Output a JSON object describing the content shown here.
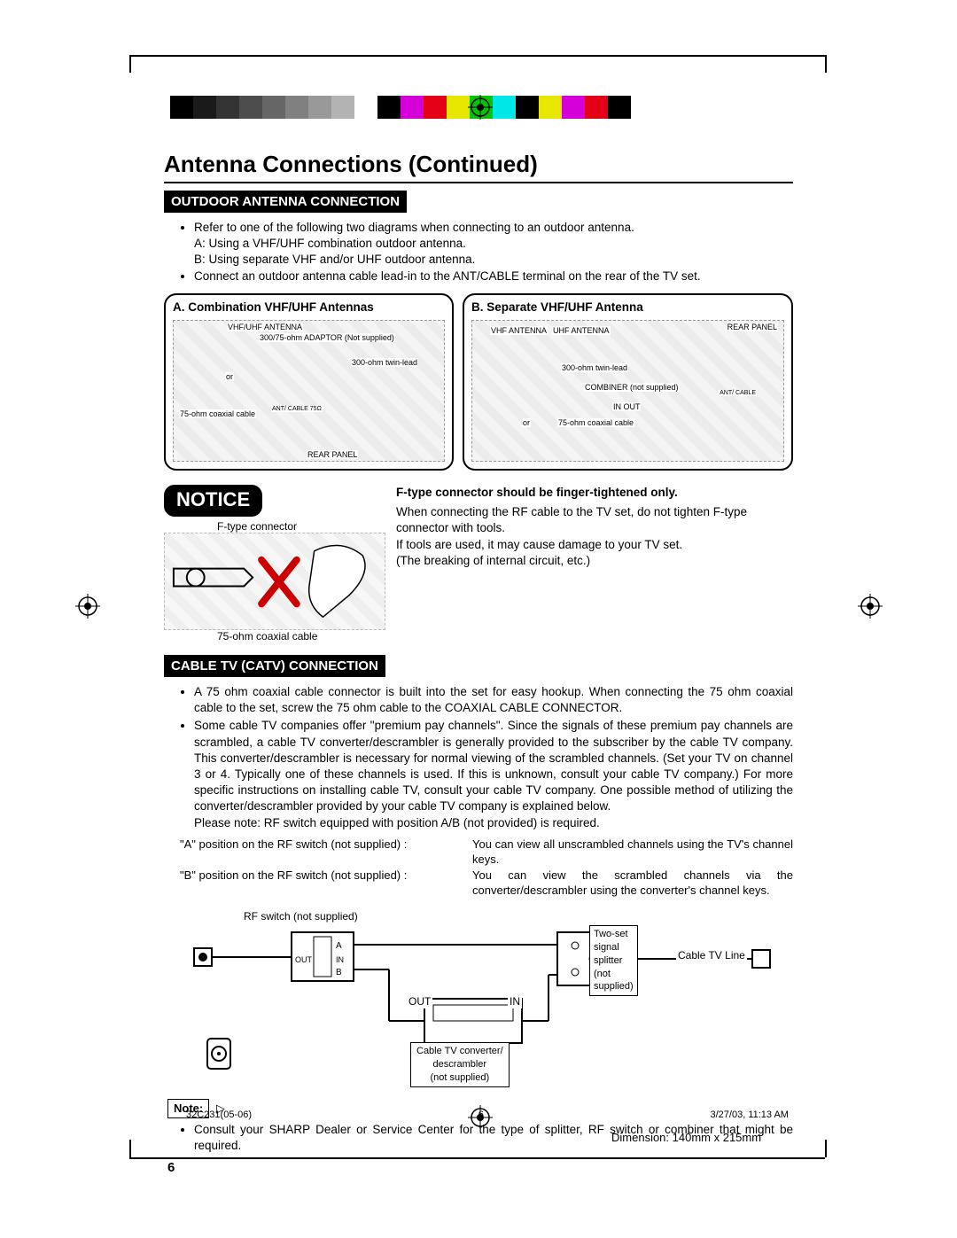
{
  "colorbar": [
    "#000000",
    "#1a1a1a",
    "#333333",
    "#4d4d4d",
    "#666666",
    "#808080",
    "#999999",
    "#b3b3b3",
    "#ffffff",
    "#000000",
    "#d500d8",
    "#e30016",
    "#e6e600",
    "#00c400",
    "#00e7e7",
    "#000000",
    "#e6e600",
    "#d500d8",
    "#e30016",
    "#000000"
  ],
  "title": "Antenna Connections (Continued)",
  "outdoor": {
    "header": "OUTDOOR ANTENNA CONNECTION",
    "bullets": [
      "Refer to one of the following two diagrams when connecting to an outdoor antenna.",
      "A: Using a VHF/UHF combination outdoor antenna.",
      "B: Using separate VHF and/or UHF outdoor antenna.",
      "Connect an outdoor antenna cable lead-in to the ANT/CABLE terminal on the rear of the TV set."
    ],
    "diagram_a": {
      "title": "A. Combination VHF/UHF Antennas",
      "labels": {
        "ant": "VHF/UHF ANTENNA",
        "adaptor": "300/75-ohm ADAPTOR (Not supplied)",
        "twin": "300-ohm twin-lead",
        "or": "or",
        "coax": "75-ohm coaxial cable",
        "term": "ANT/ CABLE 75Ω",
        "rear": "REAR PANEL"
      }
    },
    "diagram_b": {
      "title": "B. Separate VHF/UHF Antenna",
      "labels": {
        "vhf": "VHF ANTENNA",
        "uhf": "UHF ANTENNA",
        "twin": "300-ohm twin-lead",
        "combiner": "COMBINER (not supplied)",
        "inout": "IN OUT",
        "or": "or",
        "coax": "75-ohm coaxial cable",
        "term": "ANT/ CABLE",
        "rear": "REAR PANEL"
      }
    }
  },
  "notice": {
    "badge": "NOTICE",
    "top_caption": "F-type connector",
    "bottom_caption": "75-ohm coaxial cable",
    "heading": "F-type connector should be finger-tightened only.",
    "p1": "When connecting the RF cable to the TV set, do not tighten F-type connector with tools.",
    "p2": "If tools are used, it may cause damage to your TV set.",
    "p3": "(The breaking of internal circuit, etc.)"
  },
  "catv": {
    "header": "CABLE TV (CATV) CONNECTION",
    "b1": "A 75 ohm coaxial cable connector is built into the set for easy hookup. When connecting the 75 ohm coaxial cable to the set, screw the 75 ohm cable to the COAXIAL CABLE CONNECTOR.",
    "b2": "Some cable TV companies offer \"premium pay channels\". Since the signals of these premium pay channels are scrambled, a cable TV converter/descrambler is generally provided to the subscriber by the cable TV company. This converter/descrambler is necessary for normal viewing of the scrambled channels. (Set your TV on channel 3 or 4. Typically one of these channels is used. If this is unknown, consult your cable TV company.) For more specific instructions on installing cable TV, consult your cable TV company. One possible method of utilizing the converter/descrambler provided by your cable TV company is explained below.",
    "b2_note": "Please note: RF switch equipped with position A/B (not provided) is required.",
    "switch_a_k": "\"A\" position on the RF switch (not supplied)  :",
    "switch_a_v": "You can view all unscrambled channels using the TV's channel keys.",
    "switch_b_k": "\"B\" position on the RF switch (not supplied)  :",
    "switch_b_v": "You can view the scrambled channels via the converter/descrambler using the converter's channel keys.",
    "diagram": {
      "rf_switch": "RF switch (not supplied)",
      "out": "OUT",
      "in": "IN",
      "a": "A",
      "b": "B",
      "converter": "Cable TV converter/\ndescrambler\n(not supplied)",
      "splitter": "Two-set\nsignal\nsplitter\n(not\nsupplied)",
      "line": "Cable TV Line"
    },
    "note_label": "Note:",
    "note_text": "Consult your SHARP Dealer or Service Center for the type of splitter, RF switch or combiner that might be required."
  },
  "page_number": "6",
  "footer": {
    "doc": "32C231(05-06)",
    "page": "6",
    "date": "3/27/03, 11:13 AM"
  },
  "dimension": "Dimension: 140mm x 215mm",
  "style": {
    "title_fontsize": 26,
    "section_bg": "#000000",
    "section_fg": "#ffffff",
    "body_fontsize": 13.5,
    "diagram_border_radius": 14,
    "notice_bg": "#000000",
    "notice_fg": "#ffffff"
  }
}
